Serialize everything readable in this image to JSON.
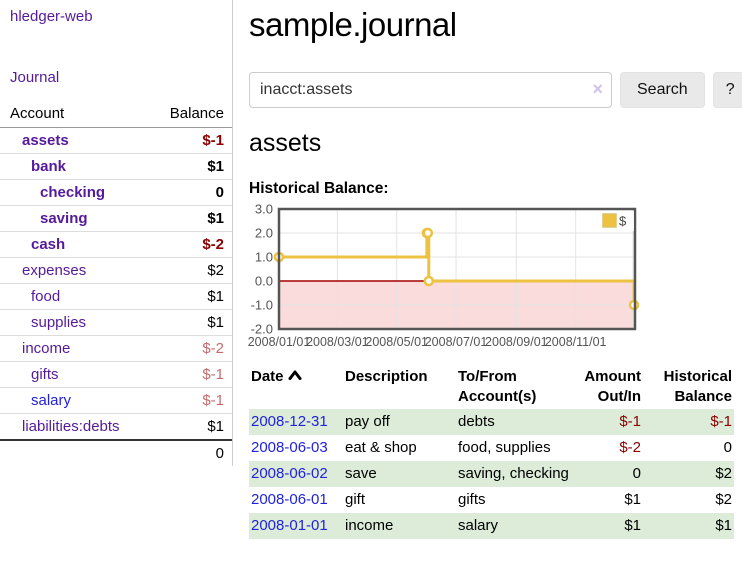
{
  "sidebar": {
    "app_title": "hledger-web",
    "nav": {
      "journal_label": "Journal"
    },
    "accounts_table": {
      "col_account": "Account",
      "col_balance": "Balance",
      "rows": [
        {
          "account": "assets",
          "level": 1,
          "bold": true,
          "balance": "$-1"
        },
        {
          "account": "bank",
          "level": 2,
          "bold": true,
          "balance": "$1"
        },
        {
          "account": "checking",
          "level": 3,
          "bold": true,
          "balance": "0"
        },
        {
          "account": "saving",
          "level": 3,
          "bold": true,
          "balance": "$1"
        },
        {
          "account": "cash",
          "level": 2,
          "bold": true,
          "balance": "$-2"
        },
        {
          "account": "expenses",
          "level": 1,
          "bold": false,
          "balance": "$2"
        },
        {
          "account": "food",
          "level": 2,
          "bold": false,
          "balance": "$1"
        },
        {
          "account": "supplies",
          "level": 2,
          "bold": false,
          "balance": "$1"
        },
        {
          "account": "income",
          "level": 1,
          "bold": false,
          "balance": "$-2"
        },
        {
          "account": "gifts",
          "level": 2,
          "bold": false,
          "balance": "$-1"
        },
        {
          "account": "salary",
          "level": 2,
          "bold": false,
          "balance": "$-1",
          "link_style": "blue"
        },
        {
          "account": "liabilities:debts",
          "level": 1,
          "bold": false,
          "balance": "$1"
        }
      ],
      "total": "0"
    }
  },
  "main": {
    "title": "sample.journal",
    "search": {
      "value": "inacct:assets",
      "clear_icon": "×",
      "button_label": "Search",
      "help_label": "?"
    },
    "account_heading": "assets",
    "chart_label": "Historical Balance:",
    "register_table": {
      "headers": {
        "date": "Date",
        "description": "Description",
        "tofrom": "To/From Account(s)",
        "amount": "Amount Out/In",
        "balance": "Historical Balance"
      },
      "rows": [
        {
          "date": "2008-12-31",
          "description": "pay off",
          "tofrom": "debts",
          "amount": "$-1",
          "balance": "$-1",
          "shaded": true
        },
        {
          "date": "2008-06-03",
          "description": "eat & shop",
          "tofrom": "food, supplies",
          "amount": "$-2",
          "balance": "0",
          "shaded": false
        },
        {
          "date": "2008-06-02",
          "description": "save",
          "tofrom": "saving, checking",
          "amount": "0",
          "balance": "$2",
          "shaded": true
        },
        {
          "date": "2008-06-01",
          "description": "gift",
          "tofrom": "gifts",
          "amount": "$1",
          "balance": "$2",
          "shaded": false
        },
        {
          "date": "2008-01-01",
          "description": "income",
          "tofrom": "salary",
          "amount": "$1",
          "balance": "$1",
          "shaded": true
        }
      ]
    }
  },
  "chart_data": {
    "type": "line",
    "step": true,
    "title": "Historical Balance",
    "series": [
      {
        "name": "$",
        "color": "#edc240",
        "points": [
          [
            "2008-01-01",
            1
          ],
          [
            "2008-06-01",
            2
          ],
          [
            "2008-06-02",
            2
          ],
          [
            "2008-06-03",
            0
          ],
          [
            "2008-12-31",
            -1
          ]
        ]
      }
    ],
    "x_range": [
      "2008-01-01",
      "2009-01-01"
    ],
    "x_ticks": [
      {
        "date": "2008-01-01",
        "label": "2008/01/01"
      },
      {
        "date": "2008-03-01",
        "label": "2008/03/01"
      },
      {
        "date": "2008-05-01",
        "label": "2008/05/01"
      },
      {
        "date": "2008-07-01",
        "label": "2008/07/01"
      },
      {
        "date": "2008-09-01",
        "label": "2008/09/01"
      },
      {
        "date": "2008-11-01",
        "label": "2008/11/01"
      }
    ],
    "ylim": [
      -2,
      3
    ],
    "y_ticks": [
      {
        "v": 3,
        "label": "3.0"
      },
      {
        "v": 2,
        "label": "2.0"
      },
      {
        "v": 1,
        "label": "1.0"
      },
      {
        "v": 0,
        "label": "0.0"
      },
      {
        "v": -1,
        "label": "-1.0"
      },
      {
        "v": -2,
        "label": "-2.0"
      }
    ],
    "grid_on": true,
    "legend_position": "ne",
    "legend_label": "$",
    "below_zero_fill": "#fbdcdc",
    "zero_line_color": "#a40000",
    "grid_color": "#e3e3e3",
    "border_color": "#555555",
    "label_color": "#545454"
  },
  "colors": {
    "link_purple": "#551a9b",
    "link_blue": "#2222dd",
    "negative_strong": "#8b0000",
    "negative_soft": "#c56c6e",
    "row_shaded_green": "#dcecd9"
  }
}
